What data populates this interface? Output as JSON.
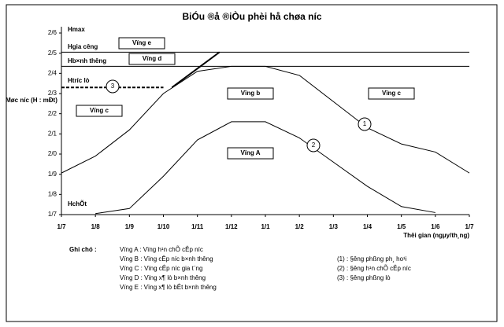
{
  "chart_data": {
    "type": "line",
    "title": "BiÓu ®å ®iÒu phèi hå chøa n­íc",
    "y_label": "Møc n­íc (H : mÐt)",
    "x_label": "Thêi gian (ngµy/th¸ng)",
    "categories": [
      "1/7",
      "1/8",
      "1/9",
      "1/10",
      "1/11",
      "1/12",
      "1/1",
      "1/2",
      "1/3",
      "1/4",
      "1/5",
      "1/6",
      "1/7"
    ],
    "ylim": [
      17,
      26
    ],
    "yticks": [
      {
        "value": 17,
        "label": "1/7"
      },
      {
        "value": 18,
        "label": "1/8"
      },
      {
        "value": 19,
        "label": "1/9"
      },
      {
        "value": 20,
        "label": "2/0"
      },
      {
        "value": 21,
        "label": "2/1"
      },
      {
        "value": 22,
        "label": "2/2"
      },
      {
        "value": 23,
        "label": "2/3"
      },
      {
        "value": 24,
        "label": "2/4"
      },
      {
        "value": 25,
        "label": "2/5"
      },
      {
        "value": 26,
        "label": "2/6"
      }
    ],
    "series": [
      {
        "name": "1",
        "color": "#000000",
        "dashed": false,
        "values": [
          19.06,
          19.9,
          21.2,
          23.0,
          24.1,
          24.35,
          24.35,
          23.9,
          22.6,
          21.3,
          20.5,
          20.1,
          19.06
        ]
      },
      {
        "name": "2",
        "color": "#000000",
        "dashed": false,
        "values": [
          null,
          17.05,
          17.3,
          18.9,
          20.7,
          21.6,
          21.6,
          20.8,
          19.6,
          18.4,
          17.4,
          17.1,
          null
        ]
      },
      {
        "name": "3",
        "color": "#000000",
        "dashed": true,
        "values": [
          23.3,
          23.3,
          23.3,
          23.3,
          null,
          null,
          null,
          null,
          null,
          null,
          null,
          null,
          null
        ]
      }
    ],
    "guide_lines": [
      {
        "x": [
          3.25,
          4.65
        ],
        "values": [
          23.3,
          25.05
        ]
      }
    ],
    "reference_lines": [
      25.05,
      24.35
    ],
    "level_labels": [
      "Hmax",
      "Hgia c­êng",
      "Hb×nh th­êng",
      "Htr­íc lò",
      "HchÕt"
    ],
    "zone_labels": [
      "Vïng e",
      "Vïng d",
      "Vïng b",
      "Vïng c",
      "Vïng c",
      "Vïng A"
    ],
    "notes_title": "Ghi chó :",
    "notes": [
      "Vïng A : Vïng h¹n chÕ cÊp n­íc",
      "Vïng B : Vïng cÊp n­íc b×nh th­êng",
      "Vïng C : Vïng cÊp n­íc gia t¨ng",
      "Vïng D : Vïng x¶ lò b×nh th­êng",
      "Vïng E : Vïng x¶ lò bÊt b×nh th­êng"
    ],
    "line_notes": [
      "(1) : §­êng phßng ph¸ ho¹i",
      "(2) : §­êng h¹n chÕ cÊp n­íc",
      "(3) : §­êng phßng lò"
    ]
  }
}
